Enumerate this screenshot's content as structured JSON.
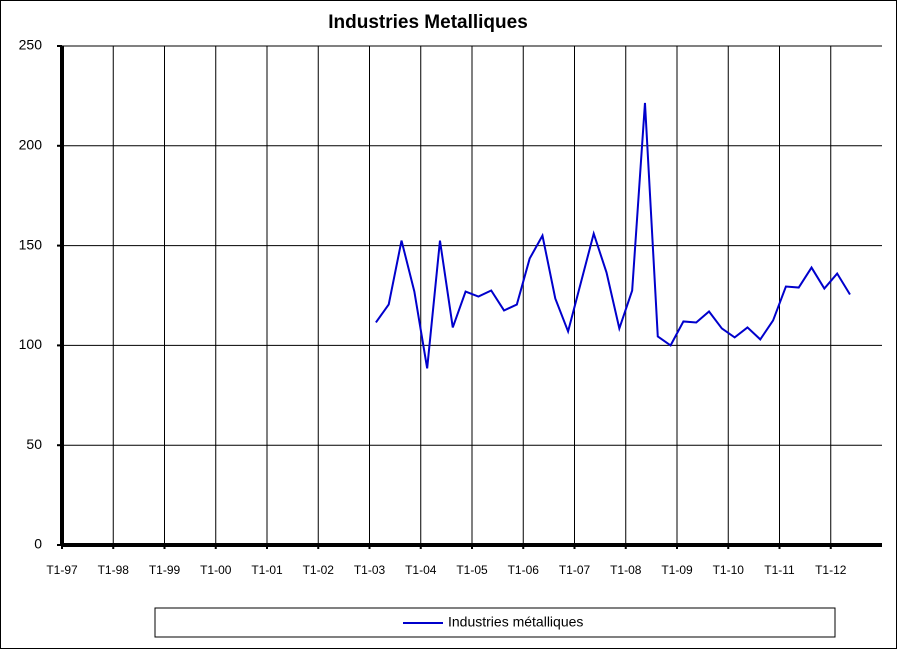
{
  "chart_data": {
    "type": "line",
    "title": "Industries Metalliques",
    "categories": [
      "T1-97",
      null,
      null,
      null,
      "T1-98",
      null,
      null,
      null,
      "T1-99",
      null,
      null,
      null,
      "T1-00",
      null,
      null,
      null,
      "T1-01",
      null,
      null,
      null,
      "T1-02",
      null,
      null,
      null,
      "T1-03",
      null,
      null,
      null,
      "T1-04",
      null,
      null,
      null,
      "T1-05",
      null,
      null,
      null,
      "T1-06",
      null,
      null,
      null,
      "T1-07",
      null,
      null,
      null,
      "T1-08",
      null,
      null,
      null,
      "T1-09",
      null,
      null,
      null,
      "T1-10",
      null,
      null,
      null,
      "T1-11",
      null,
      null,
      null,
      "T1-12",
      null,
      null,
      null
    ],
    "series": [
      {
        "name": "Industries métalliques",
        "color": "#0000cc",
        "values": [
          null,
          null,
          null,
          null,
          null,
          null,
          null,
          null,
          null,
          null,
          null,
          null,
          null,
          null,
          null,
          null,
          null,
          null,
          null,
          null,
          null,
          null,
          null,
          null,
          111.5,
          120.5,
          152.5,
          127,
          88.5,
          152.5,
          109,
          127,
          124.5,
          127.5,
          117.5,
          120.5,
          143.5,
          155,
          123.5,
          107,
          131.5,
          156,
          136.5,
          108.5,
          127.5,
          221.5,
          104.5,
          100,
          112,
          111.5,
          117,
          108.5,
          104,
          109,
          103,
          112.5,
          129.5,
          129,
          139,
          128.5,
          136,
          125.5,
          null,
          null
        ]
      }
    ],
    "ylim": [
      0,
      250
    ],
    "yticks": [
      0,
      50,
      100,
      150,
      200,
      250
    ],
    "grid": true
  }
}
